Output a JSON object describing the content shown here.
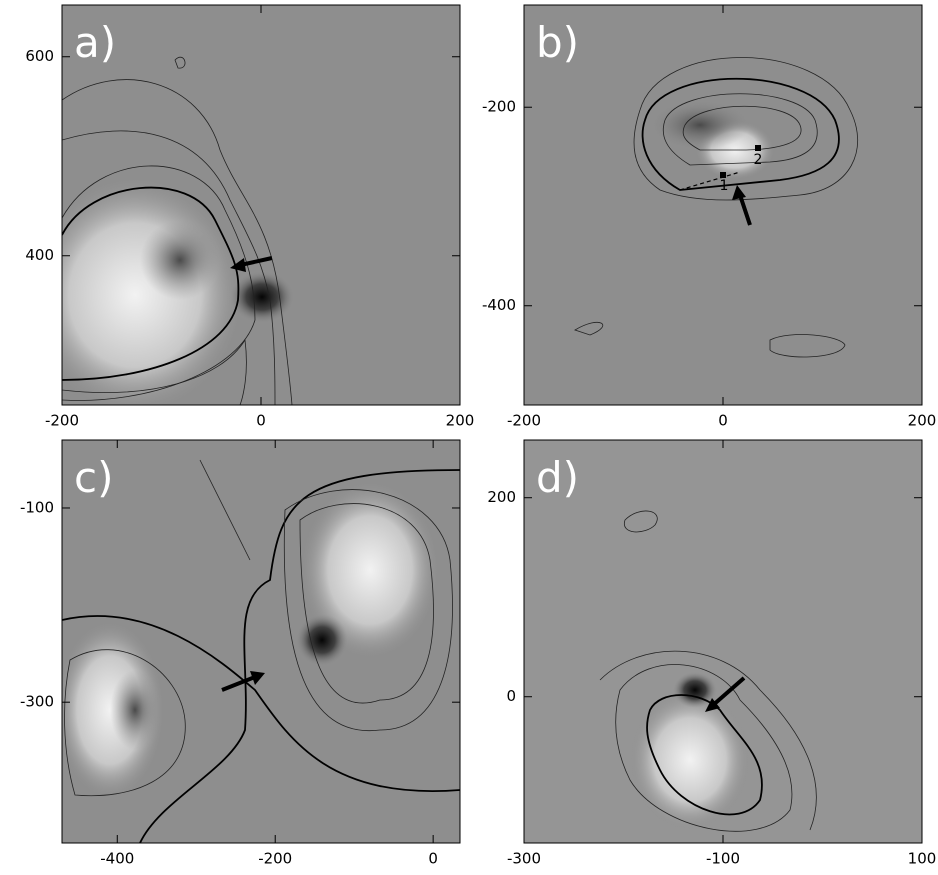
{
  "chart_data": [
    {
      "type": "image",
      "label": "a)",
      "xlim": [
        -200,
        200
      ],
      "ylim": [
        250,
        652
      ],
      "xticks": [
        -200,
        0,
        200
      ],
      "yticks": [
        400,
        600
      ]
    },
    {
      "type": "image",
      "label": "b)",
      "xlim": [
        -200,
        200
      ],
      "ylim": [
        -500,
        -97
      ],
      "xticks": [
        -200,
        0,
        200
      ],
      "yticks": [
        -400,
        -200
      ],
      "annotations": [
        "1",
        "2"
      ]
    },
    {
      "type": "image",
      "label": "c)",
      "xlim": [
        -470,
        34
      ],
      "ylim": [
        -445,
        -30
      ],
      "xticks": [
        -400,
        -200,
        0
      ],
      "yticks": [
        -300,
        -100
      ]
    },
    {
      "type": "image",
      "label": "d)",
      "xlim": [
        -300,
        100
      ],
      "ylim": [
        -147,
        258
      ],
      "xticks": [
        -300,
        -100,
        100
      ],
      "yticks": [
        0,
        200
      ]
    }
  ]
}
